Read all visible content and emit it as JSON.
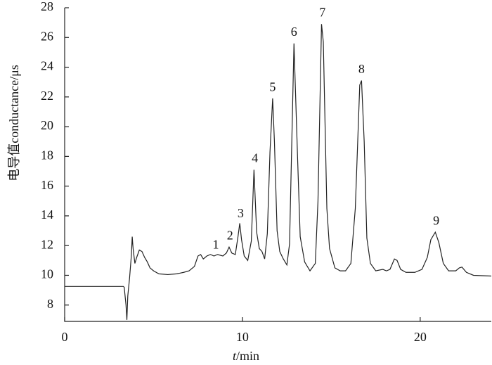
{
  "chart_data": {
    "type": "line",
    "ylabel": "电导值conductance/μs",
    "xlabel_var": "t",
    "xlabel_unit": "/min",
    "xlim": [
      0,
      24
    ],
    "ylim": [
      6.9,
      28
    ],
    "xticks": [
      0,
      10,
      20
    ],
    "yticks": [
      8,
      10,
      12,
      14,
      16,
      18,
      20,
      22,
      24,
      26,
      28
    ],
    "color": "#222222",
    "x": [
      0,
      3.3,
      3.35,
      3.45,
      3.5,
      3.55,
      3.65,
      3.75,
      3.8,
      3.85,
      3.95,
      4.05,
      4.2,
      4.35,
      4.5,
      4.65,
      4.8,
      5.0,
      5.3,
      5.8,
      6.3,
      6.7,
      7.0,
      7.3,
      7.5,
      7.65,
      7.8,
      8.0,
      8.2,
      8.4,
      8.6,
      8.9,
      9.1,
      9.25,
      9.4,
      9.6,
      9.75,
      9.85,
      9.95,
      10.1,
      10.3,
      10.5,
      10.65,
      10.8,
      10.95,
      11.1,
      11.25,
      11.4,
      11.55,
      11.7,
      11.8,
      11.95,
      12.1,
      12.3,
      12.5,
      12.65,
      12.9,
      13.1,
      13.25,
      13.5,
      13.8,
      14.1,
      14.25,
      14.45,
      14.55,
      14.75,
      14.9,
      15.2,
      15.5,
      15.8,
      16.1,
      16.35,
      16.6,
      16.7,
      16.85,
      17.0,
      17.2,
      17.5,
      17.9,
      18.1,
      18.3,
      18.55,
      18.7,
      18.9,
      19.2,
      19.7,
      20.1,
      20.4,
      20.6,
      20.85,
      21.05,
      21.3,
      21.6,
      22.0,
      22.2,
      22.35,
      22.6,
      23.0,
      24
    ],
    "values": [
      9.25,
      9.25,
      9.2,
      8.0,
      7.0,
      8.6,
      9.8,
      11.3,
      12.6,
      11.8,
      10.8,
      11.2,
      11.7,
      11.6,
      11.2,
      10.9,
      10.5,
      10.3,
      10.1,
      10.05,
      10.1,
      10.2,
      10.3,
      10.6,
      11.3,
      11.4,
      11.1,
      11.3,
      11.4,
      11.3,
      11.4,
      11.3,
      11.5,
      11.9,
      11.5,
      11.4,
      12.6,
      13.5,
      12.4,
      11.3,
      11.0,
      12.3,
      17.1,
      12.9,
      11.8,
      11.6,
      11.1,
      12.8,
      18.3,
      21.9,
      19.0,
      13.0,
      11.6,
      11.1,
      10.7,
      12.1,
      25.6,
      18.0,
      12.6,
      10.9,
      10.3,
      10.8,
      15.0,
      26.9,
      25.7,
      14.5,
      11.8,
      10.5,
      10.3,
      10.3,
      10.8,
      14.5,
      22.8,
      23.1,
      19.0,
      12.5,
      10.8,
      10.3,
      10.4,
      10.3,
      10.4,
      11.1,
      11.0,
      10.4,
      10.2,
      10.2,
      10.4,
      11.2,
      12.4,
      12.9,
      12.2,
      10.8,
      10.3,
      10.3,
      10.5,
      10.55,
      10.2,
      10.0,
      9.95
    ],
    "annotations": [
      {
        "label": "1",
        "x": 8.5,
        "y": 12.0
      },
      {
        "label": "2",
        "x": 9.3,
        "y": 12.6
      },
      {
        "label": "3",
        "x": 9.9,
        "y": 14.1
      },
      {
        "label": "4",
        "x": 10.7,
        "y": 17.8
      },
      {
        "label": "5",
        "x": 11.7,
        "y": 22.6
      },
      {
        "label": "6",
        "x": 12.9,
        "y": 26.3
      },
      {
        "label": "7",
        "x": 14.5,
        "y": 27.6
      },
      {
        "label": "8",
        "x": 16.7,
        "y": 23.8
      },
      {
        "label": "9",
        "x": 20.9,
        "y": 13.6
      }
    ]
  }
}
